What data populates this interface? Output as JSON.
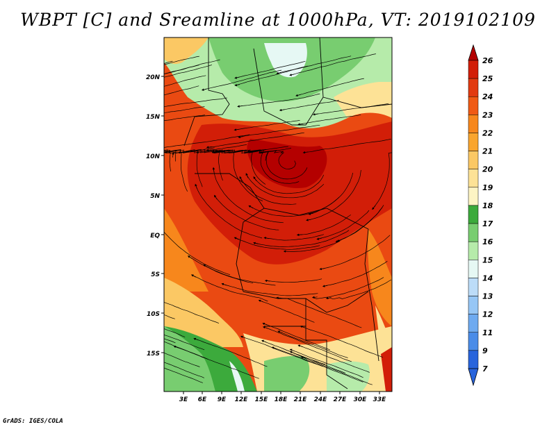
{
  "title": "WBPT [C] and Sreamline at 1000hPa, VT: 2019102109",
  "credit": "GrADS: IGES/COLA",
  "map": {
    "variable": "Wet-bulb potential temperature",
    "units": "C",
    "level": "1000hPa",
    "valid_time": "2019102109",
    "lat_labels": [
      "20N",
      "15N",
      "10N",
      "5N",
      "EQ",
      "5S",
      "10S",
      "15S"
    ],
    "lon_labels": [
      "3E",
      "6E",
      "9E",
      "12E",
      "15E",
      "18E",
      "21E",
      "24E",
      "27E",
      "30E",
      "33E"
    ]
  },
  "colorbar": {
    "levels": [
      "26",
      "25",
      "24",
      "23",
      "22",
      "21",
      "20",
      "19",
      "18",
      "17",
      "16",
      "15",
      "14",
      "13",
      "12",
      "11",
      "9",
      "7"
    ],
    "colors": [
      "#b40000",
      "#d21e08",
      "#e23a10",
      "#f05a14",
      "#f7871c",
      "#f9a52e",
      "#fbc864",
      "#fde296",
      "#fdf4c4",
      "#3caa3c",
      "#78cd70",
      "#b6ebaa",
      "#e6f8f4",
      "#bcdcf8",
      "#96c6f5",
      "#6eaaf0",
      "#4a8ce8",
      "#2864dc"
    ]
  }
}
